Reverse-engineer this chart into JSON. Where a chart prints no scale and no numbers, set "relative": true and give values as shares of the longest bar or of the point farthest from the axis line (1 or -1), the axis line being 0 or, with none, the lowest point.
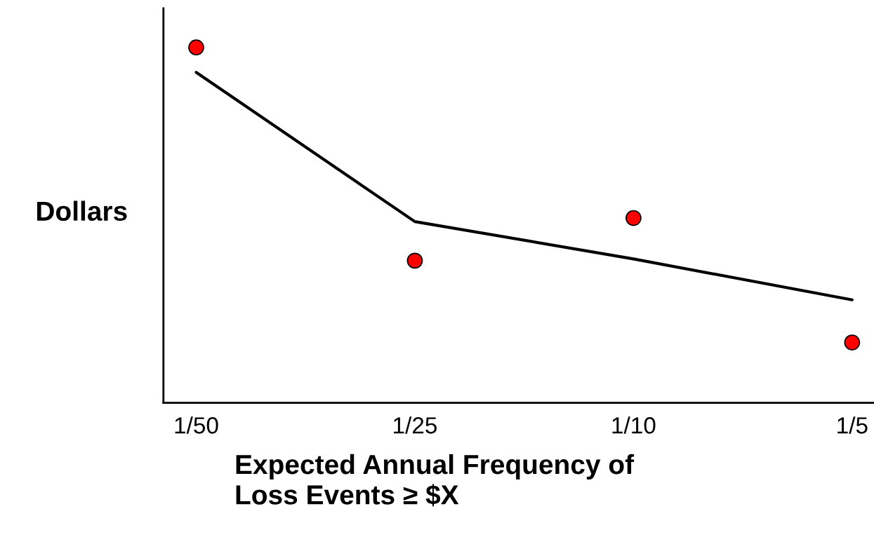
{
  "chart_data": {
    "type": "scatter",
    "relative": true,
    "xlabel": "Expected Annual Frequency of\nLoss Events ≥ $X",
    "ylabel": "Dollars",
    "categories": [
      "1/50",
      "1/25",
      "1/10",
      "1/5"
    ],
    "tick_labels": "x",
    "grid": false,
    "legend": false,
    "marker": "circle",
    "series": [
      {
        "color": "#ff0000",
        "values": [
          1,
          0.4,
          0.52,
          0.17
        ]
      },
      {
        "type": "line",
        "color": "#000000",
        "line_style": "solid",
        "marker": "none",
        "values": [
          0.93,
          0.51,
          0.405,
          0.29
        ]
      }
    ]
  }
}
